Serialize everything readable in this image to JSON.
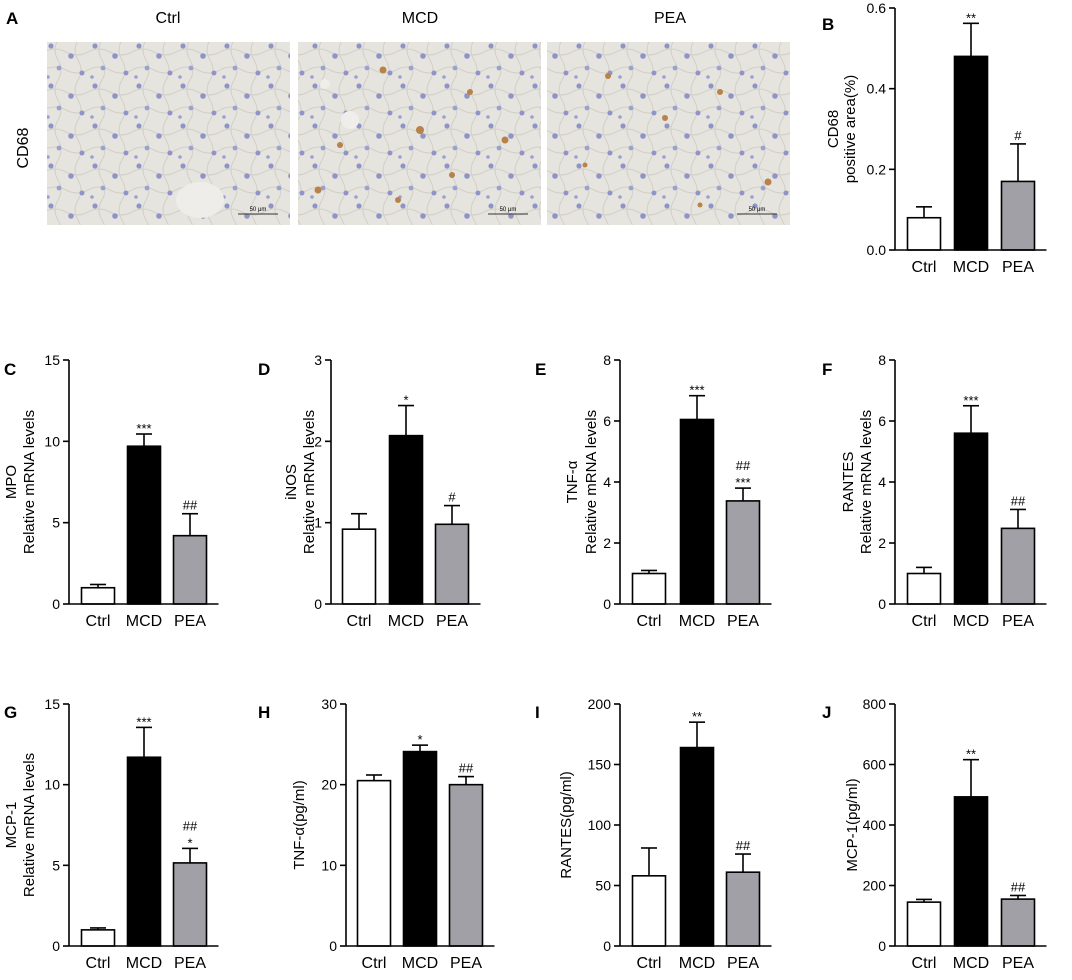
{
  "micrograph_panel": {
    "label": "A",
    "stain_label": "CD68",
    "conditions": [
      "Ctrl",
      "MCD",
      "PEA"
    ],
    "scale_bar_text": "50 μm"
  },
  "colors": {
    "Ctrl": "#ffffff",
    "MCD": "#000000",
    "PEA": "#a0a0a6",
    "tissue_bg": "#e6e4df",
    "nucleus": "#8e94c8",
    "positive_stain": "#b9824a"
  },
  "chart_data": [
    {
      "panel": "B",
      "type": "bar",
      "categories": [
        "Ctrl",
        "MCD",
        "PEA"
      ],
      "values": [
        0.08,
        0.48,
        0.17
      ],
      "errors": [
        0.027,
        0.082,
        0.093
      ],
      "sig": [
        "",
        "**",
        "#"
      ],
      "ylabel": [
        "CD68",
        "positive area(%)"
      ],
      "ylim": [
        0,
        0.6
      ],
      "yticks": [
        0.0,
        0.2,
        0.4,
        0.6
      ],
      "yticklabels": [
        "0.0",
        "0.2",
        "0.4",
        "0.6"
      ]
    },
    {
      "panel": "C",
      "type": "bar",
      "categories": [
        "Ctrl",
        "MCD",
        "PEA"
      ],
      "values": [
        1.0,
        9.7,
        4.2
      ],
      "errors": [
        0.2,
        0.75,
        1.35
      ],
      "sig": [
        "",
        "***",
        "##"
      ],
      "ylabel": [
        "MPO",
        "Relative mRNA levels"
      ],
      "ylim": [
        0,
        15
      ],
      "yticks": [
        0,
        5,
        10,
        15
      ],
      "yticklabels": [
        "0",
        "5",
        "10",
        "15"
      ]
    },
    {
      "panel": "D",
      "type": "bar",
      "categories": [
        "Ctrl",
        "MCD",
        "PEA"
      ],
      "values": [
        0.92,
        2.07,
        0.98
      ],
      "errors": [
        0.19,
        0.37,
        0.23
      ],
      "sig": [
        "",
        "*",
        "#"
      ],
      "ylabel": [
        "iNOS",
        "Relative mRNA levels"
      ],
      "ylim": [
        0,
        3
      ],
      "yticks": [
        0,
        1,
        2,
        3
      ],
      "yticklabels": [
        "0",
        "1",
        "2",
        "3"
      ]
    },
    {
      "panel": "E",
      "type": "bar",
      "categories": [
        "Ctrl",
        "MCD",
        "PEA"
      ],
      "values": [
        1.0,
        6.05,
        3.38
      ],
      "errors": [
        0.1,
        0.78,
        0.42
      ],
      "sig": [
        "",
        "***",
        "##\n***"
      ],
      "ylabel": [
        "TNF-α",
        "Relative mRNA levels"
      ],
      "ylim": [
        0,
        8
      ],
      "yticks": [
        0,
        2,
        4,
        6,
        8
      ],
      "yticklabels": [
        "0",
        "2",
        "4",
        "6",
        "8"
      ]
    },
    {
      "panel": "F",
      "type": "bar",
      "categories": [
        "Ctrl",
        "MCD",
        "PEA"
      ],
      "values": [
        1.0,
        5.6,
        2.48
      ],
      "errors": [
        0.2,
        0.9,
        0.62
      ],
      "sig": [
        "",
        "***",
        "##"
      ],
      "ylabel": [
        "RANTES",
        "Relative mRNA levels"
      ],
      "ylim": [
        0,
        8
      ],
      "yticks": [
        0,
        2,
        4,
        6,
        8
      ],
      "yticklabels": [
        "0",
        "2",
        "4",
        "6",
        "8"
      ]
    },
    {
      "panel": "G",
      "type": "bar",
      "categories": [
        "Ctrl",
        "MCD",
        "PEA"
      ],
      "values": [
        1.0,
        11.7,
        5.15
      ],
      "errors": [
        0.12,
        1.85,
        0.9
      ],
      "sig": [
        "",
        "***",
        "##\n*"
      ],
      "ylabel": [
        "MCP-1",
        "Relative mRNA levels"
      ],
      "ylim": [
        0,
        15
      ],
      "yticks": [
        0,
        5,
        10,
        15
      ],
      "yticklabels": [
        "0",
        "5",
        "10",
        "15"
      ]
    },
    {
      "panel": "H",
      "type": "bar",
      "categories": [
        "Ctrl",
        "MCD",
        "PEA"
      ],
      "values": [
        20.5,
        24.1,
        20.0
      ],
      "errors": [
        0.7,
        0.8,
        1.0
      ],
      "sig": [
        "",
        "*",
        "##"
      ],
      "ylabel": [
        "TNF-α(pg/ml)"
      ],
      "ylim": [
        0,
        30
      ],
      "yticks": [
        0,
        10,
        20,
        30
      ],
      "yticklabels": [
        "0",
        "10",
        "20",
        "30"
      ]
    },
    {
      "panel": "I",
      "type": "bar",
      "categories": [
        "Ctrl",
        "MCD",
        "PEA"
      ],
      "values": [
        58,
        164,
        61
      ],
      "errors": [
        23,
        21,
        15
      ],
      "sig": [
        "",
        "**",
        "##"
      ],
      "ylabel": [
        "RANTES(pg/ml)"
      ],
      "ylim": [
        0,
        200
      ],
      "yticks": [
        0,
        50,
        100,
        150,
        200
      ],
      "yticklabels": [
        "0",
        "50",
        "100",
        "150",
        "200"
      ]
    },
    {
      "panel": "J",
      "type": "bar",
      "categories": [
        "Ctrl",
        "MCD",
        "PEA"
      ],
      "values": [
        145,
        493,
        155
      ],
      "errors": [
        9,
        123,
        12
      ],
      "sig": [
        "",
        "**",
        "##"
      ],
      "ylabel": [
        "MCP-1(pg/ml)"
      ],
      "ylim": [
        0,
        800
      ],
      "yticks": [
        0,
        200,
        400,
        600,
        800
      ],
      "yticklabels": [
        "0",
        "200",
        "400",
        "600",
        "800"
      ]
    }
  ]
}
